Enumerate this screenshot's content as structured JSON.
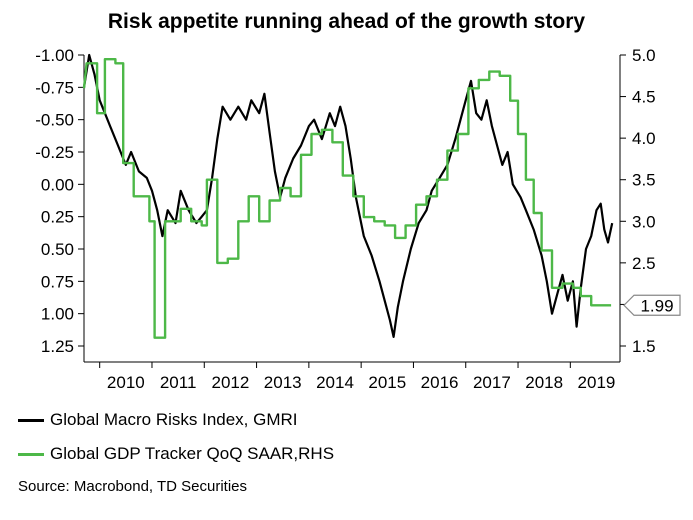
{
  "chart_data": {
    "type": "line",
    "title": "Risk appetite running ahead of the growth story",
    "source": "Source: Macrobond, TD Securities",
    "left_axis": {
      "inverted": true,
      "ylim": [
        -1.0,
        1.25
      ],
      "ticks": [
        "-1.00",
        "-0.75",
        "-0.50",
        "-0.25",
        "0.00",
        "0.25",
        "0.50",
        "0.75",
        "1.00",
        "1.25"
      ],
      "tick_values": [
        -1.0,
        -0.75,
        -0.5,
        -0.25,
        0.0,
        0.25,
        0.5,
        0.75,
        1.0,
        1.25
      ]
    },
    "right_axis": {
      "ylim": [
        1.5,
        5.0
      ],
      "ticks": [
        "5.0",
        "4.5",
        "4.0",
        "3.5",
        "3.0",
        "2.5",
        "2.0",
        "1.5"
      ],
      "tick_values": [
        5.0,
        4.5,
        4.0,
        3.5,
        3.0,
        2.5,
        2.0,
        1.5
      ]
    },
    "x_axis": {
      "xlim": [
        2009.7,
        2019.95
      ],
      "year_labels": [
        "2010",
        "2011",
        "2012",
        "2013",
        "2014",
        "2015",
        "2016",
        "2017",
        "2018",
        "2019"
      ]
    },
    "end_value_label": "1.99",
    "series": [
      {
        "name": "Global Macro Risks Index, GMRI",
        "axis": "left",
        "color": "#000000",
        "points": [
          [
            2009.7,
            -0.75
          ],
          [
            2009.8,
            -1.0
          ],
          [
            2009.9,
            -0.85
          ],
          [
            2010.0,
            -0.65
          ],
          [
            2010.1,
            -0.55
          ],
          [
            2010.2,
            -0.45
          ],
          [
            2010.35,
            -0.3
          ],
          [
            2010.5,
            -0.15
          ],
          [
            2010.6,
            -0.25
          ],
          [
            2010.75,
            -0.1
          ],
          [
            2010.9,
            -0.05
          ],
          [
            2011.0,
            0.05
          ],
          [
            2011.1,
            0.2
          ],
          [
            2011.2,
            0.4
          ],
          [
            2011.3,
            0.2
          ],
          [
            2011.45,
            0.3
          ],
          [
            2011.55,
            0.05
          ],
          [
            2011.7,
            0.2
          ],
          [
            2011.85,
            0.3
          ],
          [
            2011.95,
            0.25
          ],
          [
            2012.05,
            0.2
          ],
          [
            2012.15,
            -0.05
          ],
          [
            2012.25,
            -0.35
          ],
          [
            2012.35,
            -0.6
          ],
          [
            2012.5,
            -0.5
          ],
          [
            2012.65,
            -0.6
          ],
          [
            2012.8,
            -0.5
          ],
          [
            2012.9,
            -0.65
          ],
          [
            2013.05,
            -0.55
          ],
          [
            2013.15,
            -0.7
          ],
          [
            2013.25,
            -0.4
          ],
          [
            2013.35,
            -0.1
          ],
          [
            2013.45,
            0.1
          ],
          [
            2013.55,
            -0.05
          ],
          [
            2013.7,
            -0.2
          ],
          [
            2013.85,
            -0.3
          ],
          [
            2014.0,
            -0.45
          ],
          [
            2014.1,
            -0.5
          ],
          [
            2014.25,
            -0.35
          ],
          [
            2014.4,
            -0.55
          ],
          [
            2014.5,
            -0.45
          ],
          [
            2014.6,
            -0.6
          ],
          [
            2014.7,
            -0.45
          ],
          [
            2014.8,
            -0.2
          ],
          [
            2014.9,
            0.1
          ],
          [
            2015.05,
            0.4
          ],
          [
            2015.2,
            0.55
          ],
          [
            2015.35,
            0.75
          ],
          [
            2015.45,
            0.9
          ],
          [
            2015.55,
            1.05
          ],
          [
            2015.62,
            1.18
          ],
          [
            2015.7,
            0.95
          ],
          [
            2015.8,
            0.75
          ],
          [
            2015.95,
            0.5
          ],
          [
            2016.1,
            0.3
          ],
          [
            2016.25,
            0.2
          ],
          [
            2016.35,
            0.05
          ],
          [
            2016.5,
            -0.05
          ],
          [
            2016.65,
            -0.15
          ],
          [
            2016.8,
            -0.35
          ],
          [
            2016.9,
            -0.5
          ],
          [
            2017.0,
            -0.65
          ],
          [
            2017.1,
            -0.8
          ],
          [
            2017.2,
            -0.55
          ],
          [
            2017.3,
            -0.5
          ],
          [
            2017.4,
            -0.65
          ],
          [
            2017.5,
            -0.45
          ],
          [
            2017.6,
            -0.3
          ],
          [
            2017.7,
            -0.15
          ],
          [
            2017.8,
            -0.25
          ],
          [
            2017.9,
            0.0
          ],
          [
            2018.05,
            0.1
          ],
          [
            2018.15,
            0.2
          ],
          [
            2018.3,
            0.35
          ],
          [
            2018.45,
            0.55
          ],
          [
            2018.55,
            0.75
          ],
          [
            2018.65,
            1.0
          ],
          [
            2018.75,
            0.85
          ],
          [
            2018.85,
            0.7
          ],
          [
            2018.95,
            0.9
          ],
          [
            2019.05,
            0.75
          ],
          [
            2019.12,
            1.1
          ],
          [
            2019.2,
            0.8
          ],
          [
            2019.3,
            0.5
          ],
          [
            2019.4,
            0.4
          ],
          [
            2019.5,
            0.2
          ],
          [
            2019.58,
            0.15
          ],
          [
            2019.65,
            0.35
          ],
          [
            2019.72,
            0.45
          ],
          [
            2019.8,
            0.3
          ]
        ]
      },
      {
        "name": "Global GDP Tracker QoQ SAAR,RHS",
        "axis": "right",
        "color": "#4db848",
        "points": [
          [
            2009.7,
            4.6
          ],
          [
            2009.75,
            4.9
          ],
          [
            2009.95,
            4.9
          ],
          [
            2009.95,
            4.3
          ],
          [
            2010.1,
            4.3
          ],
          [
            2010.1,
            4.95
          ],
          [
            2010.3,
            4.95
          ],
          [
            2010.3,
            4.9
          ],
          [
            2010.45,
            4.9
          ],
          [
            2010.45,
            3.7
          ],
          [
            2010.65,
            3.7
          ],
          [
            2010.65,
            3.3
          ],
          [
            2010.95,
            3.3
          ],
          [
            2010.95,
            3.0
          ],
          [
            2011.05,
            3.0
          ],
          [
            2011.05,
            1.6
          ],
          [
            2011.25,
            1.6
          ],
          [
            2011.25,
            3.0
          ],
          [
            2011.55,
            3.0
          ],
          [
            2011.55,
            3.15
          ],
          [
            2011.75,
            3.15
          ],
          [
            2011.75,
            3.0
          ],
          [
            2011.95,
            3.0
          ],
          [
            2011.95,
            2.95
          ],
          [
            2012.05,
            2.95
          ],
          [
            2012.05,
            3.5
          ],
          [
            2012.25,
            3.5
          ],
          [
            2012.25,
            2.5
          ],
          [
            2012.45,
            2.5
          ],
          [
            2012.45,
            2.55
          ],
          [
            2012.65,
            2.55
          ],
          [
            2012.65,
            3.0
          ],
          [
            2012.85,
            3.0
          ],
          [
            2012.85,
            3.3
          ],
          [
            2013.05,
            3.3
          ],
          [
            2013.05,
            3.0
          ],
          [
            2013.25,
            3.0
          ],
          [
            2013.25,
            3.25
          ],
          [
            2013.45,
            3.25
          ],
          [
            2013.45,
            3.4
          ],
          [
            2013.65,
            3.4
          ],
          [
            2013.65,
            3.3
          ],
          [
            2013.85,
            3.3
          ],
          [
            2013.85,
            3.8
          ],
          [
            2014.05,
            3.8
          ],
          [
            2014.05,
            4.05
          ],
          [
            2014.25,
            4.05
          ],
          [
            2014.25,
            4.1
          ],
          [
            2014.45,
            4.1
          ],
          [
            2014.45,
            3.95
          ],
          [
            2014.65,
            3.95
          ],
          [
            2014.65,
            3.55
          ],
          [
            2014.85,
            3.55
          ],
          [
            2014.85,
            3.3
          ],
          [
            2015.05,
            3.3
          ],
          [
            2015.05,
            3.05
          ],
          [
            2015.25,
            3.05
          ],
          [
            2015.25,
            3.0
          ],
          [
            2015.45,
            3.0
          ],
          [
            2015.45,
            2.95
          ],
          [
            2015.65,
            2.95
          ],
          [
            2015.65,
            2.8
          ],
          [
            2015.85,
            2.8
          ],
          [
            2015.85,
            2.95
          ],
          [
            2016.05,
            2.95
          ],
          [
            2016.05,
            3.2
          ],
          [
            2016.25,
            3.2
          ],
          [
            2016.25,
            3.3
          ],
          [
            2016.45,
            3.3
          ],
          [
            2016.45,
            3.5
          ],
          [
            2016.65,
            3.5
          ],
          [
            2016.65,
            3.85
          ],
          [
            2016.85,
            3.85
          ],
          [
            2016.85,
            4.05
          ],
          [
            2017.05,
            4.05
          ],
          [
            2017.05,
            4.6
          ],
          [
            2017.25,
            4.6
          ],
          [
            2017.25,
            4.7
          ],
          [
            2017.45,
            4.7
          ],
          [
            2017.45,
            4.8
          ],
          [
            2017.65,
            4.8
          ],
          [
            2017.65,
            4.75
          ],
          [
            2017.85,
            4.75
          ],
          [
            2017.85,
            4.45
          ],
          [
            2018.0,
            4.45
          ],
          [
            2018.0,
            4.05
          ],
          [
            2018.15,
            4.05
          ],
          [
            2018.15,
            3.5
          ],
          [
            2018.3,
            3.5
          ],
          [
            2018.3,
            3.1
          ],
          [
            2018.45,
            3.1
          ],
          [
            2018.45,
            2.65
          ],
          [
            2018.65,
            2.65
          ],
          [
            2018.65,
            2.2
          ],
          [
            2018.85,
            2.2
          ],
          [
            2018.85,
            2.25
          ],
          [
            2019.05,
            2.25
          ],
          [
            2019.05,
            2.2
          ],
          [
            2019.2,
            2.2
          ],
          [
            2019.2,
            2.1
          ],
          [
            2019.4,
            2.1
          ],
          [
            2019.4,
            1.99
          ],
          [
            2019.78,
            1.99
          ]
        ]
      }
    ]
  },
  "legend": {
    "black_label": "Global Macro Risks Index, GMRI",
    "green_label": "Global GDP Tracker QoQ SAAR,RHS"
  }
}
